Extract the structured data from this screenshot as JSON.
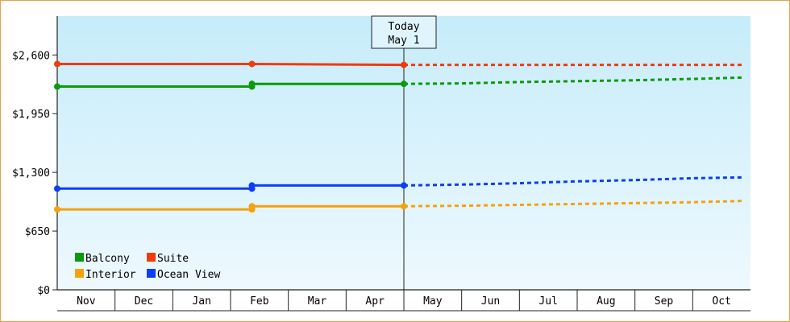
{
  "chart_data": {
    "type": "line",
    "categories": [
      "Nov",
      "Dec",
      "Jan",
      "Feb",
      "Mar",
      "Apr",
      "May",
      "Jun",
      "Jul",
      "Aug",
      "Sep",
      "Oct"
    ],
    "y_ticks": [
      "$0",
      "$650",
      "$1,300",
      "$1,950",
      "$2,600"
    ],
    "y_tick_values": [
      0,
      650,
      1300,
      1950,
      2600
    ],
    "ylim": [
      0,
      3030
    ],
    "grid": false,
    "background": "gradient light-blue",
    "today_marker": {
      "line1": "Today",
      "line2": "May 1",
      "x": 6.0
    },
    "legend": {
      "placement": "bottom-left"
    },
    "series": [
      {
        "name": "Balcony",
        "color": "#0a9a0a",
        "history": [
          [
            0.0,
            2250
          ],
          [
            3.37,
            2250
          ],
          [
            3.37,
            2280
          ],
          [
            6.0,
            2280
          ]
        ],
        "points": [
          [
            0.0,
            2250
          ],
          [
            3.37,
            2250
          ],
          [
            3.37,
            2280
          ],
          [
            6.0,
            2280
          ]
        ],
        "forecast": [
          [
            6.0,
            2280
          ],
          [
            7.0,
            2285
          ],
          [
            8.0,
            2300
          ],
          [
            9.0,
            2310
          ],
          [
            10.0,
            2320
          ],
          [
            11.0,
            2335
          ],
          [
            11.9,
            2350
          ]
        ]
      },
      {
        "name": "Suite",
        "color": "#f23a0c",
        "history": [
          [
            0.0,
            2500
          ],
          [
            3.37,
            2500
          ],
          [
            6.0,
            2490
          ]
        ],
        "points": [
          [
            0.0,
            2500
          ],
          [
            3.37,
            2500
          ],
          [
            6.0,
            2490
          ]
        ],
        "forecast": [
          [
            6.0,
            2490
          ],
          [
            11.9,
            2490
          ]
        ]
      },
      {
        "name": "Interior",
        "color": "#f6a20c",
        "history": [
          [
            0.0,
            890
          ],
          [
            3.37,
            890
          ],
          [
            3.37,
            925
          ],
          [
            6.0,
            925
          ]
        ],
        "points": [
          [
            0.0,
            890
          ],
          [
            3.37,
            890
          ],
          [
            3.37,
            925
          ],
          [
            6.0,
            925
          ]
        ],
        "forecast": [
          [
            6.0,
            925
          ],
          [
            7.0,
            930
          ],
          [
            8.0,
            940
          ],
          [
            9.0,
            950
          ],
          [
            10.0,
            960
          ],
          [
            11.0,
            970
          ],
          [
            11.9,
            985
          ]
        ]
      },
      {
        "name": "Ocean View",
        "color": "#0b3dfa",
        "history": [
          [
            0.0,
            1120
          ],
          [
            3.37,
            1120
          ],
          [
            3.37,
            1155
          ],
          [
            6.0,
            1155
          ]
        ],
        "points": [
          [
            0.0,
            1120
          ],
          [
            3.37,
            1120
          ],
          [
            3.37,
            1155
          ],
          [
            6.0,
            1155
          ]
        ],
        "forecast": [
          [
            6.0,
            1155
          ],
          [
            7.0,
            1165
          ],
          [
            8.0,
            1180
          ],
          [
            9.0,
            1200
          ],
          [
            10.0,
            1215
          ],
          [
            11.0,
            1235
          ],
          [
            11.9,
            1245
          ]
        ]
      }
    ]
  }
}
